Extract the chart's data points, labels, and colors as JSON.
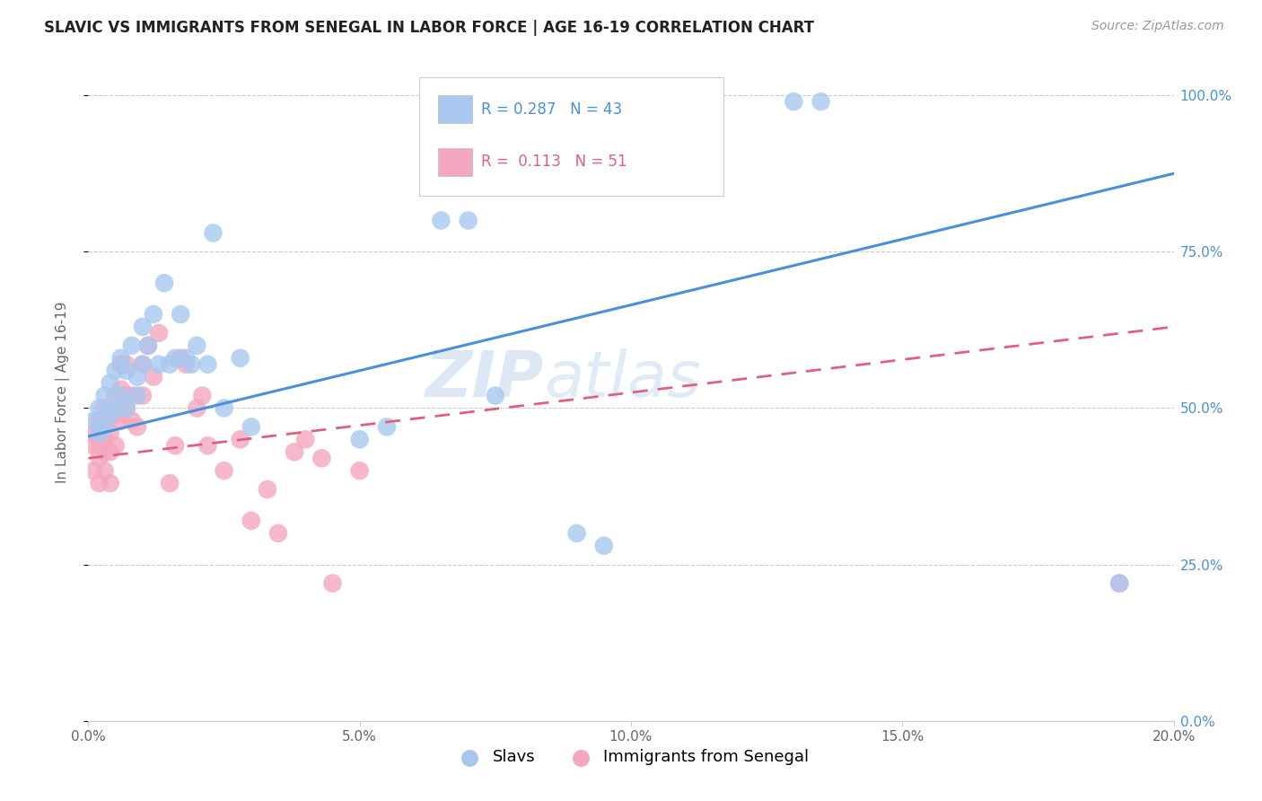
{
  "title": "SLAVIC VS IMMIGRANTS FROM SENEGAL IN LABOR FORCE | AGE 16-19 CORRELATION CHART",
  "source": "Source: ZipAtlas.com",
  "xlabel_ticks": [
    "0.0%",
    "5.0%",
    "10.0%",
    "15.0%",
    "20.0%"
  ],
  "xlabel_tick_vals": [
    0.0,
    0.05,
    0.1,
    0.15,
    0.2
  ],
  "ylabel_ticks": [
    "0.0%",
    "25.0%",
    "50.0%",
    "75.0%",
    "100.0%"
  ],
  "ylabel_tick_vals": [
    0.0,
    0.25,
    0.5,
    0.75,
    1.0
  ],
  "ylabel": "In Labor Force | Age 16-19",
  "legend_label1": "Slavs",
  "legend_label2": "Immigrants from Senegal",
  "R1": "0.287",
  "N1": "43",
  "R2": "0.113",
  "N2": "51",
  "color1": "#a8c8f0",
  "color2": "#f4a8c0",
  "line_color1": "#4a90d9",
  "line_color2": "#e06080",
  "watermark": "ZIPatlas",
  "slavs_x": [
    0.001,
    0.002,
    0.002,
    0.003,
    0.003,
    0.004,
    0.004,
    0.005,
    0.005,
    0.006,
    0.006,
    0.007,
    0.007,
    0.008,
    0.009,
    0.009,
    0.01,
    0.01,
    0.011,
    0.012,
    0.013,
    0.014,
    0.015,
    0.016,
    0.017,
    0.018,
    0.019,
    0.02,
    0.022,
    0.023,
    0.025,
    0.028,
    0.03,
    0.05,
    0.055,
    0.065,
    0.07,
    0.075,
    0.09,
    0.095,
    0.13,
    0.135,
    0.19
  ],
  "slavs_y": [
    0.48,
    0.5,
    0.46,
    0.52,
    0.47,
    0.54,
    0.49,
    0.56,
    0.5,
    0.58,
    0.52,
    0.56,
    0.5,
    0.6,
    0.55,
    0.52,
    0.57,
    0.63,
    0.6,
    0.65,
    0.57,
    0.7,
    0.57,
    0.58,
    0.65,
    0.58,
    0.57,
    0.6,
    0.57,
    0.78,
    0.5,
    0.58,
    0.47,
    0.45,
    0.47,
    0.8,
    0.8,
    0.52,
    0.3,
    0.28,
    0.99,
    0.99,
    0.22
  ],
  "senegal_x": [
    0.001,
    0.001,
    0.001,
    0.002,
    0.002,
    0.002,
    0.002,
    0.002,
    0.003,
    0.003,
    0.003,
    0.003,
    0.003,
    0.004,
    0.004,
    0.004,
    0.005,
    0.005,
    0.005,
    0.006,
    0.006,
    0.006,
    0.007,
    0.007,
    0.007,
    0.008,
    0.008,
    0.009,
    0.01,
    0.01,
    0.011,
    0.012,
    0.013,
    0.015,
    0.016,
    0.017,
    0.018,
    0.02,
    0.021,
    0.022,
    0.025,
    0.028,
    0.03,
    0.033,
    0.035,
    0.038,
    0.04,
    0.043,
    0.045,
    0.05,
    0.19
  ],
  "senegal_y": [
    0.44,
    0.46,
    0.4,
    0.48,
    0.46,
    0.44,
    0.42,
    0.38,
    0.5,
    0.47,
    0.45,
    0.43,
    0.4,
    0.46,
    0.43,
    0.38,
    0.52,
    0.49,
    0.44,
    0.57,
    0.53,
    0.48,
    0.57,
    0.52,
    0.5,
    0.52,
    0.48,
    0.47,
    0.57,
    0.52,
    0.6,
    0.55,
    0.62,
    0.38,
    0.44,
    0.58,
    0.57,
    0.5,
    0.52,
    0.44,
    0.4,
    0.45,
    0.32,
    0.37,
    0.3,
    0.43,
    0.45,
    0.42,
    0.22,
    0.4,
    0.22
  ],
  "line1_x0": 0.0,
  "line1_y0": 0.455,
  "line1_x1": 0.2,
  "line1_y1": 0.875,
  "line2_x0": 0.0,
  "line2_y0": 0.42,
  "line2_x1": 0.2,
  "line2_y1": 0.63
}
